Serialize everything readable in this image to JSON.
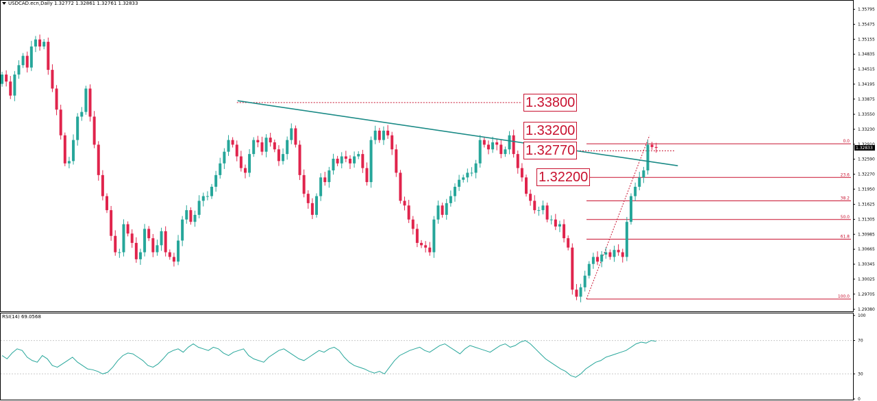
{
  "header": {
    "symbol_line": "USDCAD.ecn,Daily  1.32772 1.32861 1.32761 1.32833",
    "rsi_line": "RSI(14) 69.0568"
  },
  "colors": {
    "bull": "#26a69a",
    "bear": "#e0244c",
    "trendline": "#1a8a86",
    "level": "#c8102e",
    "grid": "#c9c9c9",
    "rsi_line": "#26a69a"
  },
  "price_axis": {
    "ticks": [
      "1.35795",
      "1.35475",
      "1.35155",
      "1.34835",
      "1.34515",
      "1.34195",
      "1.33875",
      "1.33550",
      "1.33230",
      "1.32910",
      "1.32590",
      "1.32270",
      "1.31950",
      "1.31625",
      "1.31305",
      "1.30985",
      "1.30665",
      "1.30345",
      "1.30025",
      "1.29705",
      "1.29380"
    ],
    "current_price": "1.32833",
    "range": [
      1.2938,
      1.3595
    ]
  },
  "levels": [
    {
      "label": "1.33800",
      "price": 1.338
    },
    {
      "label": "1.33200",
      "price": 1.332
    },
    {
      "label": "1.32770",
      "price": 1.3277
    },
    {
      "label": "1.32200",
      "price": 1.322
    }
  ],
  "fibonacci": {
    "levels": [
      {
        "label": "0.0",
        "price": 1.3292
      },
      {
        "label": "23.6",
        "price": 1.322
      },
      {
        "label": "38.2",
        "price": 1.317
      },
      {
        "label": "50.0",
        "price": 1.313
      },
      {
        "label": "61.8",
        "price": 1.3088
      },
      {
        "label": "100.0",
        "price": 1.296
      }
    ]
  },
  "rsi_axis": {
    "ticks": [
      {
        "label": "100",
        "v": 100
      },
      {
        "label": "70",
        "v": 70
      },
      {
        "label": "30",
        "v": 30
      },
      {
        "label": "0",
        "v": 0
      }
    ]
  },
  "chart_data": {
    "type": "candlestick",
    "instrument": "USDCAD.ecn",
    "timeframe": "Daily",
    "ylim": [
      1.2938,
      1.3595
    ],
    "closes": [
      1.344,
      1.3425,
      1.3395,
      1.344,
      1.346,
      1.348,
      1.3455,
      1.35,
      1.3515,
      1.35,
      1.351,
      1.345,
      1.341,
      1.3365,
      1.331,
      1.325,
      1.3255,
      1.33,
      1.335,
      1.336,
      1.341,
      1.335,
      1.329,
      1.3225,
      1.318,
      1.315,
      1.3095,
      1.306,
      1.306,
      1.312,
      1.31,
      1.308,
      1.3045,
      1.306,
      1.311,
      1.309,
      1.306,
      1.3075,
      1.3105,
      1.306,
      1.305,
      1.304,
      1.3085,
      1.313,
      1.315,
      1.3125,
      1.314,
      1.317,
      1.318,
      1.318,
      1.32,
      1.3225,
      1.325,
      1.3275,
      1.33,
      1.329,
      1.3265,
      1.324,
      1.323,
      1.327,
      1.33,
      1.3295,
      1.3275,
      1.3305,
      1.3295,
      1.328,
      1.3255,
      1.327,
      1.33,
      1.3325,
      1.329,
      1.3225,
      1.3185,
      1.3165,
      1.314,
      1.318,
      1.322,
      1.321,
      1.3235,
      1.326,
      1.325,
      1.3265,
      1.326,
      1.325,
      1.3265,
      1.327,
      1.324,
      1.321,
      1.33,
      1.332,
      1.33,
      1.332,
      1.331,
      1.328,
      1.323,
      1.317,
      1.316,
      1.313,
      1.311,
      1.308,
      1.3075,
      1.307,
      1.306,
      1.313,
      1.316,
      1.314,
      1.3165,
      1.318,
      1.32,
      1.3215,
      1.322,
      1.323,
      1.323,
      1.325,
      1.33,
      1.329,
      1.328,
      1.3295,
      1.329,
      1.327,
      1.328,
      1.331,
      1.327,
      1.324,
      1.322,
      1.3185,
      1.317,
      1.315,
      1.315,
      1.316,
      1.313,
      1.313,
      1.3115,
      1.312,
      1.309,
      1.307,
      1.298,
      1.2965,
      1.2985,
      1.301,
      1.3035,
      1.305,
      1.304,
      1.3055,
      1.306,
      1.305,
      1.3065,
      1.306,
      1.305,
      1.3125,
      1.318,
      1.32,
      1.322,
      1.3235,
      1.329,
      1.3285,
      1.32833
    ],
    "rsi": [
      52,
      48,
      55,
      60,
      58,
      50,
      46,
      44,
      52,
      48,
      40,
      38,
      42,
      46,
      50,
      44,
      40,
      36,
      35,
      33,
      30,
      32,
      38,
      46,
      52,
      55,
      54,
      50,
      46,
      40,
      38,
      42,
      48,
      55,
      58,
      60,
      56,
      62,
      66,
      62,
      60,
      58,
      62,
      60,
      55,
      52,
      56,
      58,
      60,
      52,
      48,
      46,
      44,
      50,
      54,
      58,
      60,
      56,
      52,
      48,
      46,
      50,
      54,
      58,
      56,
      60,
      62,
      58,
      50,
      44,
      40,
      38,
      36,
      33,
      31,
      33,
      30,
      38,
      46,
      52,
      55,
      58,
      60,
      62,
      58,
      56,
      60,
      64,
      66,
      62,
      58,
      54,
      60,
      64,
      62,
      60,
      58,
      56,
      60,
      64,
      66,
      62,
      64,
      68,
      70,
      66,
      60,
      54,
      48,
      44,
      40,
      36,
      33,
      28,
      26,
      30,
      36,
      40,
      44,
      46,
      50,
      52,
      54,
      56,
      58,
      62,
      66,
      68,
      67,
      70,
      69.06
    ],
    "trendline": {
      "from": {
        "bar": 56,
        "price": 1.3384
      },
      "to": {
        "bar": 161,
        "price": 1.3245
      }
    },
    "fib_swing": {
      "low": 1.296,
      "high": 1.3292
    }
  }
}
